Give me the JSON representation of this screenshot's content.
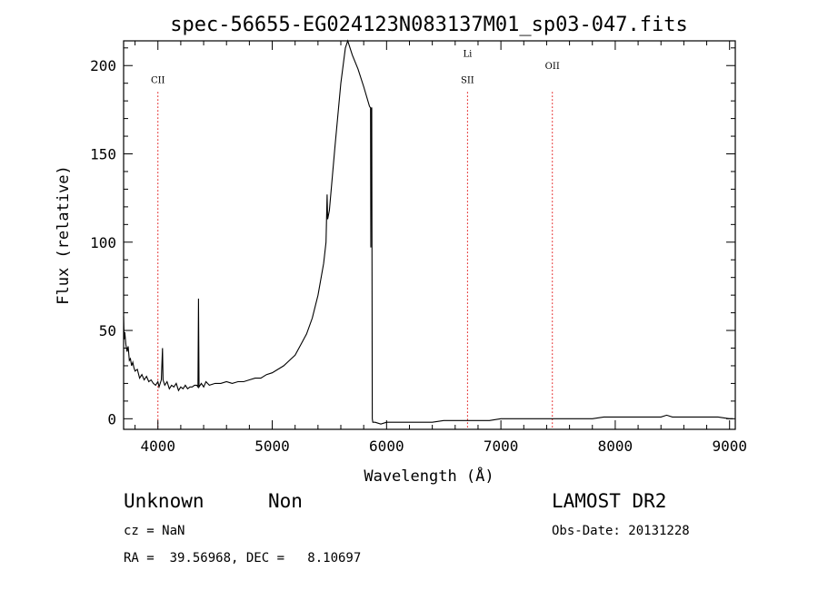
{
  "chart_data": {
    "type": "line",
    "title": "spec-56655-EG024123N083137M01_sp03-047.fits",
    "xlabel": "Wavelength (Å)",
    "ylabel": "Flux (relative)",
    "xlim": [
      3700,
      9050
    ],
    "ylim": [
      -6,
      214
    ],
    "x_ticks": [
      4000,
      5000,
      6000,
      7000,
      8000,
      9000
    ],
    "y_ticks": [
      0,
      50,
      100,
      150,
      200
    ],
    "x_tick_labels": [
      "4000",
      "5000",
      "6000",
      "7000",
      "8000",
      "9000"
    ],
    "y_tick_labels": [
      "0",
      "50",
      "100",
      "150",
      "200"
    ],
    "grid": false,
    "legend": "none",
    "series": [
      {
        "color": "#000000",
        "points": [
          [
            3700,
            58
          ],
          [
            3705,
            45
          ],
          [
            3710,
            49
          ],
          [
            3720,
            42
          ],
          [
            3730,
            38
          ],
          [
            3740,
            41
          ],
          [
            3750,
            33
          ],
          [
            3760,
            34
          ],
          [
            3770,
            30
          ],
          [
            3780,
            32
          ],
          [
            3790,
            29
          ],
          [
            3800,
            27
          ],
          [
            3820,
            28
          ],
          [
            3840,
            23
          ],
          [
            3860,
            25
          ],
          [
            3880,
            22
          ],
          [
            3900,
            24
          ],
          [
            3920,
            21
          ],
          [
            3940,
            22
          ],
          [
            3960,
            20
          ],
          [
            3980,
            19
          ],
          [
            4000,
            21
          ],
          [
            4010,
            18
          ],
          [
            4030,
            22
          ],
          [
            4040,
            40
          ],
          [
            4045,
            22
          ],
          [
            4060,
            19
          ],
          [
            4080,
            21
          ],
          [
            4100,
            17
          ],
          [
            4120,
            19
          ],
          [
            4140,
            18
          ],
          [
            4160,
            20
          ],
          [
            4180,
            16
          ],
          [
            4200,
            18
          ],
          [
            4220,
            17
          ],
          [
            4240,
            19
          ],
          [
            4260,
            17
          ],
          [
            4280,
            18
          ],
          [
            4300,
            18
          ],
          [
            4320,
            19
          ],
          [
            4340,
            19
          ],
          [
            4350,
            18
          ],
          [
            4355,
            68
          ],
          [
            4360,
            18
          ],
          [
            4380,
            20
          ],
          [
            4400,
            18
          ],
          [
            4420,
            21
          ],
          [
            4450,
            19
          ],
          [
            4500,
            20
          ],
          [
            4550,
            20
          ],
          [
            4600,
            21
          ],
          [
            4650,
            20
          ],
          [
            4700,
            21
          ],
          [
            4750,
            21
          ],
          [
            4800,
            22
          ],
          [
            4850,
            23
          ],
          [
            4900,
            23
          ],
          [
            4950,
            25
          ],
          [
            5000,
            26
          ],
          [
            5050,
            28
          ],
          [
            5100,
            30
          ],
          [
            5150,
            33
          ],
          [
            5200,
            36
          ],
          [
            5250,
            42
          ],
          [
            5300,
            48
          ],
          [
            5350,
            57
          ],
          [
            5400,
            70
          ],
          [
            5450,
            88
          ],
          [
            5470,
            100
          ],
          [
            5480,
            127
          ],
          [
            5485,
            113
          ],
          [
            5500,
            118
          ],
          [
            5550,
            155
          ],
          [
            5600,
            190
          ],
          [
            5640,
            210
          ],
          [
            5660,
            214
          ],
          [
            5700,
            206
          ],
          [
            5750,
            198
          ],
          [
            5800,
            188
          ],
          [
            5850,
            177
          ],
          [
            5860,
            176
          ],
          [
            5862,
            97
          ],
          [
            5865,
            176
          ],
          [
            5870,
            176
          ],
          [
            5875,
            0
          ],
          [
            5880,
            -2
          ],
          [
            5900,
            -2
          ],
          [
            5950,
            -3
          ],
          [
            6000,
            -2
          ],
          [
            6100,
            -2
          ],
          [
            6200,
            -2
          ],
          [
            6300,
            -2
          ],
          [
            6400,
            -2
          ],
          [
            6500,
            -1
          ],
          [
            6600,
            -1
          ],
          [
            6700,
            -1
          ],
          [
            6800,
            -1
          ],
          [
            6900,
            -1
          ],
          [
            7000,
            0
          ],
          [
            7100,
            0
          ],
          [
            7200,
            0
          ],
          [
            7300,
            0
          ],
          [
            7400,
            0
          ],
          [
            7500,
            0
          ],
          [
            7600,
            0
          ],
          [
            7700,
            0
          ],
          [
            7800,
            0
          ],
          [
            7900,
            1
          ],
          [
            8000,
            1
          ],
          [
            8100,
            1
          ],
          [
            8200,
            1
          ],
          [
            8300,
            1
          ],
          [
            8400,
            1
          ],
          [
            8450,
            2
          ],
          [
            8500,
            1
          ],
          [
            8600,
            1
          ],
          [
            8700,
            1
          ],
          [
            8800,
            1
          ],
          [
            8900,
            1
          ],
          [
            9000,
            0
          ],
          [
            9030,
            0
          ]
        ]
      }
    ],
    "annotations": [
      {
        "label": "CII",
        "x": 4000,
        "label_y": 190,
        "color": "#e00000"
      },
      {
        "label": "Li",
        "x": 6708,
        "label_y": 205,
        "color": "#e00000"
      },
      {
        "label": "SII",
        "x": 6708,
        "label_y": 190,
        "color": "#e00000"
      },
      {
        "label": "OII",
        "x": 7450,
        "label_y": 198,
        "color": "#e00000"
      }
    ]
  },
  "info": {
    "class": "Unknown",
    "subclass": "Non",
    "cz": "cz = NaN",
    "coords": "RA =  39.56968, DEC =   8.10697",
    "survey": "LAMOST DR2",
    "obs_date": "Obs-Date: 20131228"
  }
}
